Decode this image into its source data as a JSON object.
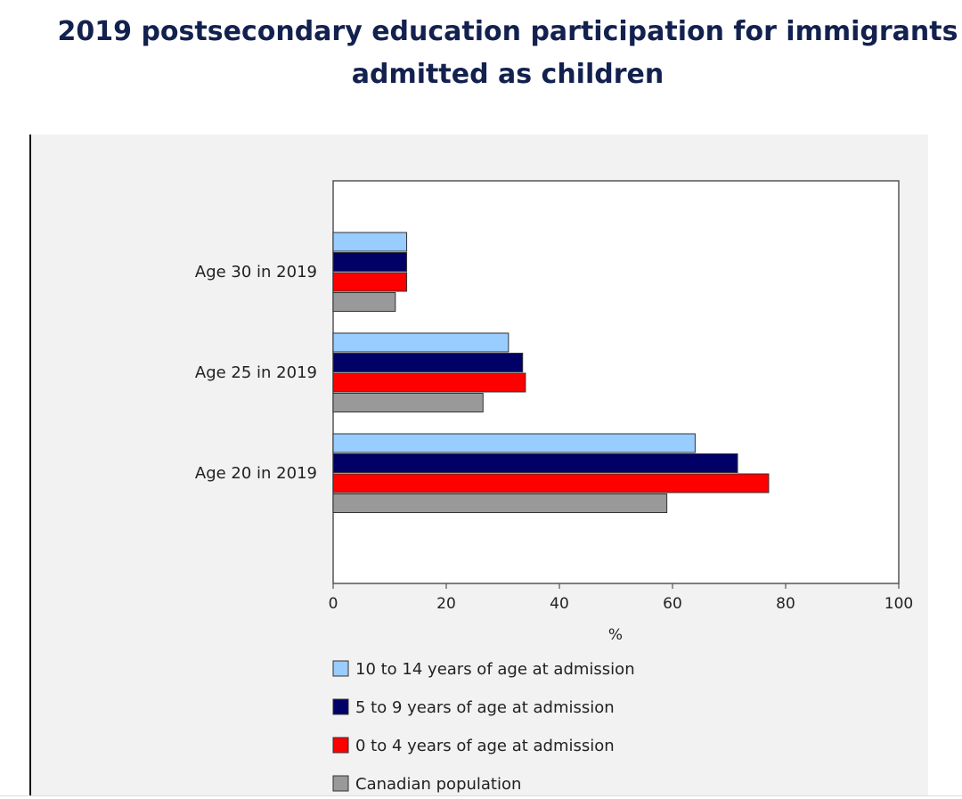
{
  "title": "2019 postsecondary education participation for immigrants admitted as children",
  "chart_data": {
    "type": "bar",
    "orientation": "horizontal",
    "title": "2019 postsecondary education participation for immigrants admitted as children",
    "categories": [
      "Age 30 in 2019",
      "Age 25 in 2019",
      "Age 20 in 2019"
    ],
    "series": [
      {
        "name": "10 to 14 years of age at admission",
        "color": "#99ccff",
        "values": [
          13,
          31,
          64
        ]
      },
      {
        "name": "5 to 9 years of age at admission",
        "color": "#000066",
        "values": [
          13,
          33.5,
          71.5
        ]
      },
      {
        "name": "0 to 4 years of age at admission",
        "color": "#ff0000",
        "values": [
          13,
          34,
          77
        ]
      },
      {
        "name": "Canadian population",
        "color": "#999999",
        "values": [
          11,
          26.5,
          59
        ]
      }
    ],
    "xlabel": "%",
    "ylabel": "",
    "xlim": [
      0,
      100
    ],
    "xticks": [
      "0",
      "20",
      "40",
      "60",
      "80",
      "100"
    ],
    "grid": false,
    "legend_position": "bottom"
  }
}
